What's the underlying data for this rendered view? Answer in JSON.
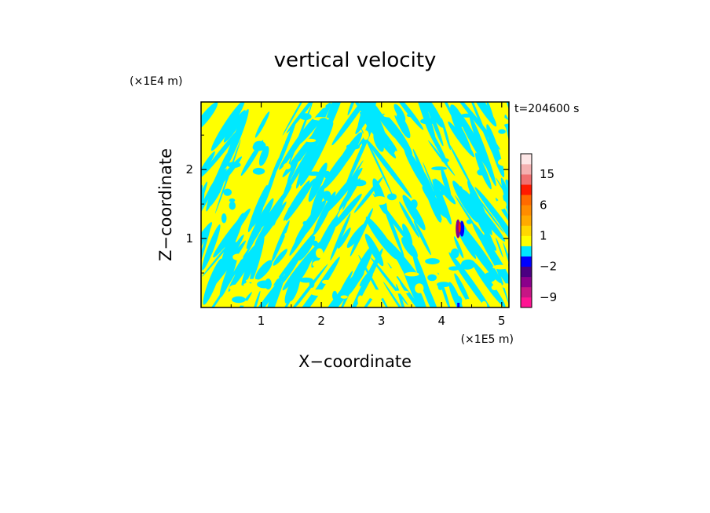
{
  "chart_data": {
    "type": "heatmap",
    "title": "vertical velocity",
    "xlabel": "X−coordinate",
    "ylabel": "Z−coordinate",
    "x_scale_label": "(×1E5 m)",
    "y_scale_label": "(×1E4 m)",
    "time_label": "t=204600 s",
    "xlim": [
      0,
      5.12
    ],
    "ylim": [
      0,
      2.98
    ],
    "x_ticks": [
      1,
      2,
      3,
      4,
      5
    ],
    "y_ticks": [
      1,
      2
    ],
    "x_tick_labels": [
      "1",
      "2",
      "3",
      "4",
      "5"
    ],
    "y_tick_labels": [
      "1",
      "2"
    ],
    "field_classes": [
      {
        "range": "0 to 1",
        "color": "#ffff00"
      },
      {
        "range": "-1 to 0",
        "color": "#00e8ff"
      }
    ],
    "hotspot": {
      "x": 4.3,
      "z": 1.05,
      "note": "strong up/down couplet"
    },
    "colorbar": {
      "levels": [
        {
          "from": -12,
          "to": -9,
          "color": "#ff1493"
        },
        {
          "from": -9,
          "to": -6,
          "color": "#c71585"
        },
        {
          "from": -6,
          "to": -4,
          "color": "#8b008b"
        },
        {
          "from": -4,
          "to": -2,
          "color": "#4b0082"
        },
        {
          "from": -2,
          "to": -1,
          "color": "#0000ff"
        },
        {
          "from": -1,
          "to": 0,
          "color": "#00e8ff"
        },
        {
          "from": 0,
          "to": 1,
          "color": "#ffff00"
        },
        {
          "from": 1,
          "to": 2,
          "color": "#ffd700"
        },
        {
          "from": 2,
          "to": 4,
          "color": "#ffaa00"
        },
        {
          "from": 4,
          "to": 6,
          "color": "#ff8c00"
        },
        {
          "from": 6,
          "to": 9,
          "color": "#ff6a00"
        },
        {
          "from": 9,
          "to": 12,
          "color": "#ff1a00"
        },
        {
          "from": 12,
          "to": 15,
          "color": "#f07070"
        },
        {
          "from": 15,
          "to": 18,
          "color": "#f4b0b0"
        },
        {
          "from": 18,
          "to": 22,
          "color": "#fde6e6"
        }
      ],
      "tick_labels": [
        "15",
        "6",
        "1",
        "−2",
        "−9"
      ],
      "tick_values": [
        15,
        6,
        1,
        -2,
        -9
      ]
    }
  }
}
